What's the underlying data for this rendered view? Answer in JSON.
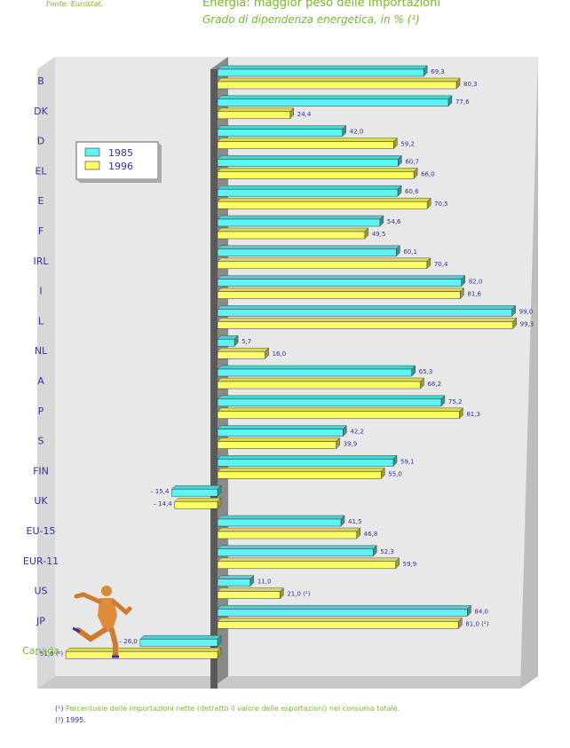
{
  "source": "Fonte: Eurostat.",
  "title": "Energia: maggior peso delle importazioni",
  "subtitle": "Grado di dipendenza energetica, in % (¹)",
  "footnotes": {
    "note1_marker": "(¹)",
    "note1": "Percentuale delle importazioni nette (detratto il valore delle esportazioni) nel consumo totale.",
    "note2_marker": "(²)",
    "note2": "1995."
  },
  "colors": {
    "series1985": "#5ef4f4",
    "series1996": "#ffff66",
    "highlight_label": "#7ab82e",
    "label": "#333399"
  },
  "illustration": "running-figure",
  "chart_data": {
    "type": "bar",
    "orientation": "horizontal",
    "categories": [
      "B",
      "DK",
      "D",
      "EL",
      "E",
      "F",
      "IRL",
      "I",
      "L",
      "NL",
      "A",
      "P",
      "S",
      "FIN",
      "UK",
      "EU-15",
      "EUR-11",
      "US",
      "JP",
      "Canada"
    ],
    "highlighted_categories": [
      "Canada"
    ],
    "series": [
      {
        "name": "1985",
        "values": [
          69.3,
          77.6,
          42.0,
          60.7,
          60.6,
          54.6,
          60.1,
          82.0,
          99.0,
          5.7,
          65.3,
          75.2,
          42.2,
          59.1,
          -15.4,
          41.5,
          52.3,
          11.0,
          84.0,
          -26.0
        ],
        "labels": [
          "69,3",
          "77,6",
          "42,0",
          "60,7",
          "60,6",
          "54,6",
          "60,1",
          "82,0",
          "99,0",
          "5,7",
          "65,3",
          "75,2",
          "42,2",
          "59,1",
          "– 15,4",
          "41,5",
          "52,3",
          "11,0",
          "84,0",
          "– 26,0"
        ]
      },
      {
        "name": "1996",
        "values": [
          80.3,
          24.4,
          59.2,
          66.0,
          70.5,
          49.5,
          70.4,
          81.6,
          99.3,
          16.0,
          68.2,
          81.3,
          39.9,
          55.0,
          -14.4,
          46.8,
          59.9,
          21.0,
          81.0,
          -51.0
        ],
        "labels": [
          "80,3",
          "24,4",
          "59,2",
          "66,0",
          "70,5",
          "49,5",
          "70,4",
          "81,6",
          "99,3",
          "16,0",
          "68,2",
          "81,3",
          "39,9",
          "55,0",
          "– 14,4",
          "46,8",
          "59,9",
          "21,0 (²)",
          "81,0 (²)",
          "– 51,0 (²)"
        ]
      }
    ],
    "legend": {
      "position": "top-left",
      "entries": [
        "1985",
        "1996"
      ]
    },
    "xlim": [
      -55,
      100
    ],
    "grid": false
  }
}
